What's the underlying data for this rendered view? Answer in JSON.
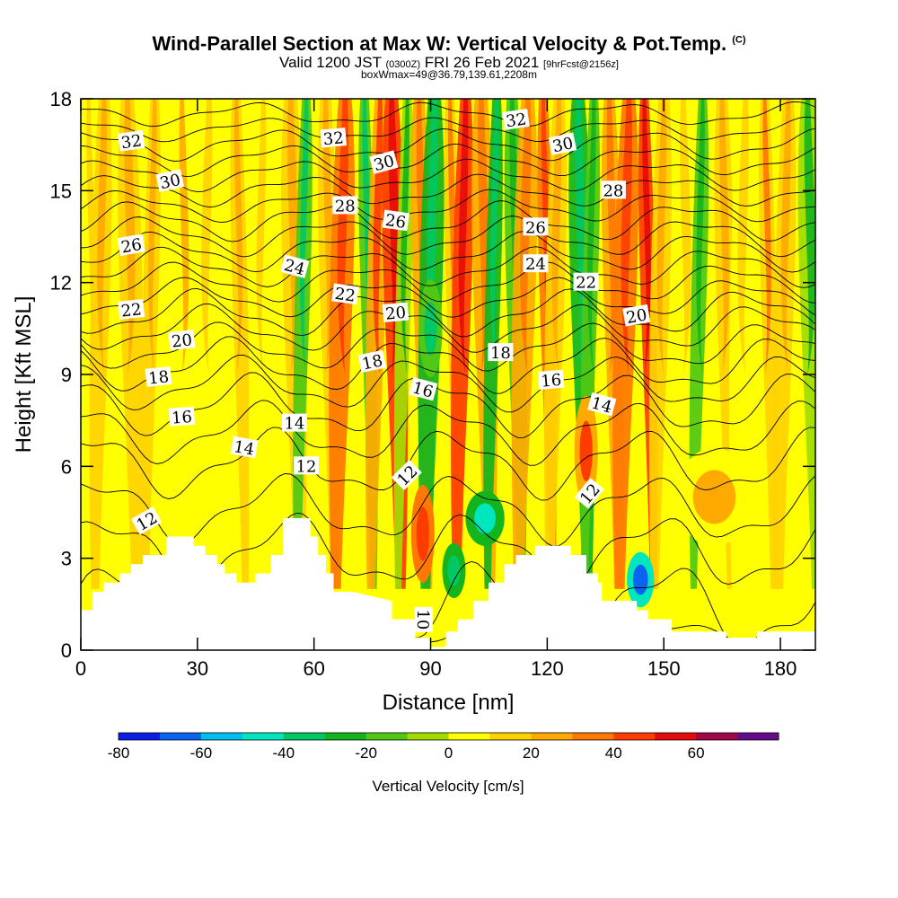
{
  "header": {
    "title": "Wind-Parallel Section at Max W: Vertical Velocity & Pot.Temp.",
    "title_mark": "(C)",
    "valid_prefix": "Valid 1200 JST",
    "valid_utc": "(0300Z)",
    "valid_date": "FRI 26 Feb 2021",
    "forecast": "[9hrFcst@2156z]",
    "box_info": "boxWmax=49@36.79,139.61,2208m"
  },
  "chart_data": {
    "type": "heatmap",
    "xlabel": "Distance [nm]",
    "ylabel": "Height [Kft MSL]",
    "xlim": [
      0,
      189
    ],
    "ylim": [
      0,
      18
    ],
    "x_ticks": [
      0,
      30,
      60,
      90,
      120,
      150,
      180
    ],
    "y_ticks": [
      0,
      3,
      6,
      9,
      12,
      15,
      18
    ],
    "field": "Vertical Velocity [cm/s]",
    "contour_field": "Potential temperature",
    "colorbar": {
      "label": "Vertical Velocity [cm/s]",
      "tick_values": [
        -80,
        -60,
        -40,
        -20,
        0,
        20,
        40,
        60
      ],
      "bounds": [
        -80,
        -70,
        -60,
        -50,
        -40,
        -30,
        -20,
        -10,
        0,
        10,
        20,
        30,
        40,
        50,
        60,
        70
      ],
      "colors": [
        "#0a1ee6",
        "#0a64f0",
        "#00bef0",
        "#00e6be",
        "#00c864",
        "#14b41e",
        "#50c814",
        "#a0dc00",
        "#ffff00",
        "#ffd200",
        "#ffaa00",
        "#ff7800",
        "#ff3c00",
        "#e60a0a",
        "#a0084a",
        "#640a8c"
      ]
    },
    "velocity_columns": [
      {
        "x": 2,
        "w": 2
      },
      {
        "x": 6,
        "w": 12
      },
      {
        "x": 12,
        "w": 10
      },
      {
        "x": 19,
        "w": 16
      },
      {
        "x": 26,
        "w": 8
      },
      {
        "x": 33,
        "w": 2
      },
      {
        "x": 40,
        "w": 14
      },
      {
        "x": 47,
        "w": 4
      },
      {
        "x": 54,
        "w": 10
      },
      {
        "x": 58,
        "w": -20
      },
      {
        "x": 63,
        "w": 16
      },
      {
        "x": 68,
        "w": 30
      },
      {
        "x": 73,
        "w": -20
      },
      {
        "x": 77,
        "w": 28
      },
      {
        "x": 80,
        "w": 45
      },
      {
        "x": 84,
        "w": -10
      },
      {
        "x": 87,
        "w": 22
      },
      {
        "x": 91,
        "w": -22
      },
      {
        "x": 95,
        "w": 18
      },
      {
        "x": 99,
        "w": 42
      },
      {
        "x": 103,
        "w": 24
      },
      {
        "x": 107,
        "w": -26
      },
      {
        "x": 111,
        "w": -12
      },
      {
        "x": 115,
        "w": 22
      },
      {
        "x": 119,
        "w": 36
      },
      {
        "x": 123,
        "w": 12
      },
      {
        "x": 128,
        "w": -24
      },
      {
        "x": 132,
        "w": -14
      },
      {
        "x": 136,
        "w": 20
      },
      {
        "x": 141,
        "w": 34
      },
      {
        "x": 145,
        "w": 44
      },
      {
        "x": 150,
        "w": 10
      },
      {
        "x": 155,
        "w": 4
      },
      {
        "x": 160,
        "w": -12
      },
      {
        "x": 165,
        "w": 14
      },
      {
        "x": 171,
        "w": 6
      },
      {
        "x": 176,
        "w": 18
      },
      {
        "x": 182,
        "w": 10
      },
      {
        "x": 187,
        "w": -10
      }
    ],
    "velocity_cells": [
      {
        "x": 88,
        "y": 3.8,
        "rx": 3,
        "ry": 1.6,
        "w": 45
      },
      {
        "x": 130,
        "y": 6.5,
        "rx": 3,
        "ry": 1.8,
        "w": 40
      },
      {
        "x": 144,
        "y": 2.3,
        "rx": 3.5,
        "ry": 0.9,
        "w": -65
      },
      {
        "x": 104,
        "y": 4.3,
        "rx": 5,
        "ry": 0.9,
        "w": -45
      },
      {
        "x": 96,
        "y": 2.6,
        "rx": 3,
        "ry": 0.9,
        "w": -40
      },
      {
        "x": 163,
        "y": 5,
        "rx": 10,
        "ry": 1.6,
        "w": 20
      },
      {
        "x": 90,
        "y": 10.5,
        "rx": 3,
        "ry": 1.6,
        "w": -35
      }
    ],
    "terrain": [
      [
        0,
        1.3
      ],
      [
        3,
        1.3
      ],
      [
        3,
        1.9
      ],
      [
        6,
        1.9
      ],
      [
        6,
        2.2
      ],
      [
        10,
        2.2
      ],
      [
        10,
        2.5
      ],
      [
        13,
        2.5
      ],
      [
        13,
        2.8
      ],
      [
        16,
        2.8
      ],
      [
        16,
        3.1
      ],
      [
        22,
        3.1
      ],
      [
        22,
        3.7
      ],
      [
        29,
        3.7
      ],
      [
        29,
        3.4
      ],
      [
        32,
        3.4
      ],
      [
        32,
        3.1
      ],
      [
        35,
        3.1
      ],
      [
        35,
        2.8
      ],
      [
        37,
        2.8
      ],
      [
        37,
        2.5
      ],
      [
        40,
        2.5
      ],
      [
        40,
        2.2
      ],
      [
        45,
        2.2
      ],
      [
        45,
        2.5
      ],
      [
        49,
        2.5
      ],
      [
        49,
        3.1
      ],
      [
        52,
        3.1
      ],
      [
        52,
        4.3
      ],
      [
        59,
        4.3
      ],
      [
        59,
        3.7
      ],
      [
        61,
        3.7
      ],
      [
        61,
        3.1
      ],
      [
        63,
        3.1
      ],
      [
        63,
        2.5
      ],
      [
        65,
        2.5
      ],
      [
        65,
        1.9
      ],
      [
        70,
        1.9
      ],
      [
        70,
        1.9
      ],
      [
        80,
        1.6
      ],
      [
        80,
        1.0
      ],
      [
        86,
        1.0
      ],
      [
        86,
        0.4
      ],
      [
        90,
        0.4
      ],
      [
        90,
        0.1
      ],
      [
        94,
        0.1
      ],
      [
        94,
        0.6
      ],
      [
        97,
        0.6
      ],
      [
        97,
        1.0
      ],
      [
        101,
        1.0
      ],
      [
        101,
        1.6
      ],
      [
        105,
        1.6
      ],
      [
        105,
        2.2
      ],
      [
        109,
        2.2
      ],
      [
        109,
        2.8
      ],
      [
        112,
        2.8
      ],
      [
        112,
        3.1
      ],
      [
        117,
        3.1
      ],
      [
        117,
        3.4
      ],
      [
        126,
        3.4
      ],
      [
        126,
        3.1
      ],
      [
        130,
        3.1
      ],
      [
        130,
        2.5
      ],
      [
        133,
        2.5
      ],
      [
        133,
        2.2
      ],
      [
        134,
        2.2
      ],
      [
        134,
        1.6
      ],
      [
        143,
        1.6
      ],
      [
        143,
        1.3
      ],
      [
        146,
        1.3
      ],
      [
        146,
        1.0
      ],
      [
        152,
        1.0
      ],
      [
        152,
        0.6
      ],
      [
        166,
        0.6
      ],
      [
        166,
        0.4
      ],
      [
        174,
        0.4
      ],
      [
        174,
        0.6
      ],
      [
        189,
        0.6
      ]
    ],
    "theta_contours": [
      {
        "value": 10,
        "base": 0.5,
        "amp": 0.3
      },
      {
        "value": 11,
        "base": 1.4,
        "amp": 1.2
      },
      {
        "value": 12,
        "base": 3.2,
        "amp": 1.0
      },
      {
        "value": 13,
        "base": 4.6,
        "amp": 0.9
      },
      {
        "value": 14,
        "base": 6.1,
        "amp": 0.9
      },
      {
        "value": 15,
        "base": 7.1,
        "amp": 0.8
      },
      {
        "value": 16,
        "base": 8.0,
        "amp": 0.8
      },
      {
        "value": 17,
        "base": 8.7,
        "amp": 0.7
      },
      {
        "value": 18,
        "base": 9.3,
        "amp": 0.7
      },
      {
        "value": 19,
        "base": 9.9,
        "amp": 0.6
      },
      {
        "value": 20,
        "base": 10.5,
        "amp": 0.6
      },
      {
        "value": 21,
        "base": 11.0,
        "amp": 0.6
      },
      {
        "value": 22,
        "base": 11.5,
        "amp": 0.5
      },
      {
        "value": 23,
        "base": 12.0,
        "amp": 0.5
      },
      {
        "value": 24,
        "base": 12.5,
        "amp": 0.5
      },
      {
        "value": 25,
        "base": 13.0,
        "amp": 0.5
      },
      {
        "value": 26,
        "base": 13.5,
        "amp": 0.5
      },
      {
        "value": 27,
        "base": 14.0,
        "amp": 0.5
      },
      {
        "value": 28,
        "base": 14.5,
        "amp": 0.4
      },
      {
        "value": 29,
        "base": 15.0,
        "amp": 0.4
      },
      {
        "value": 30,
        "base": 15.5,
        "amp": 0.4
      },
      {
        "value": 31,
        "base": 16.0,
        "amp": 0.4
      },
      {
        "value": 32,
        "base": 16.5,
        "amp": 0.4
      },
      {
        "value": 33,
        "base": 17.0,
        "amp": 0.3
      },
      {
        "value": 34,
        "base": 17.5,
        "amp": 0.3
      }
    ],
    "contour_labels": [
      {
        "text": "32",
        "x": 13,
        "y": 16.6,
        "angle": -8
      },
      {
        "text": "30",
        "x": 23,
        "y": 15.3,
        "angle": -12
      },
      {
        "text": "26",
        "x": 13,
        "y": 13.2,
        "angle": -10
      },
      {
        "text": "22",
        "x": 13,
        "y": 11.1,
        "angle": -6
      },
      {
        "text": "20",
        "x": 26,
        "y": 10.1,
        "angle": -6
      },
      {
        "text": "18",
        "x": 20,
        "y": 8.9,
        "angle": -6
      },
      {
        "text": "16",
        "x": 26,
        "y": 7.6,
        "angle": -4
      },
      {
        "text": "14",
        "x": 42,
        "y": 6.6,
        "angle": 10
      },
      {
        "text": "14",
        "x": 55,
        "y": 7.4,
        "angle": 0
      },
      {
        "text": "12",
        "x": 58,
        "y": 6.0,
        "angle": 0
      },
      {
        "text": "12",
        "x": 17,
        "y": 4.2,
        "angle": -30
      },
      {
        "text": "24",
        "x": 55,
        "y": 12.5,
        "angle": 15
      },
      {
        "text": "22",
        "x": 68,
        "y": 11.6,
        "angle": 8
      },
      {
        "text": "32",
        "x": 65,
        "y": 16.7,
        "angle": -5
      },
      {
        "text": "28",
        "x": 68,
        "y": 14.5,
        "angle": 0
      },
      {
        "text": "30",
        "x": 78,
        "y": 15.9,
        "angle": -15
      },
      {
        "text": "26",
        "x": 81,
        "y": 14.0,
        "angle": 8
      },
      {
        "text": "20",
        "x": 81,
        "y": 11.0,
        "angle": -5
      },
      {
        "text": "18",
        "x": 75,
        "y": 9.4,
        "angle": -12
      },
      {
        "text": "16",
        "x": 88,
        "y": 8.5,
        "angle": 15
      },
      {
        "text": "12",
        "x": 84,
        "y": 5.7,
        "angle": -45
      },
      {
        "text": "10",
        "x": 88,
        "y": 1.0,
        "angle": 90
      },
      {
        "text": "32",
        "x": 112,
        "y": 17.3,
        "angle": -8
      },
      {
        "text": "30",
        "x": 124,
        "y": 16.5,
        "angle": -12
      },
      {
        "text": "28",
        "x": 137,
        "y": 15.0,
        "angle": 0
      },
      {
        "text": "26",
        "x": 117,
        "y": 13.8,
        "angle": 0
      },
      {
        "text": "24",
        "x": 117,
        "y": 12.6,
        "angle": 0
      },
      {
        "text": "22",
        "x": 130,
        "y": 12.0,
        "angle": 0
      },
      {
        "text": "20",
        "x": 143,
        "y": 10.9,
        "angle": -10
      },
      {
        "text": "18",
        "x": 108,
        "y": 9.7,
        "angle": 0
      },
      {
        "text": "16",
        "x": 121,
        "y": 8.8,
        "angle": -5
      },
      {
        "text": "14",
        "x": 134,
        "y": 8.0,
        "angle": 15
      },
      {
        "text": "12",
        "x": 131,
        "y": 5.1,
        "angle": -50
      }
    ]
  }
}
